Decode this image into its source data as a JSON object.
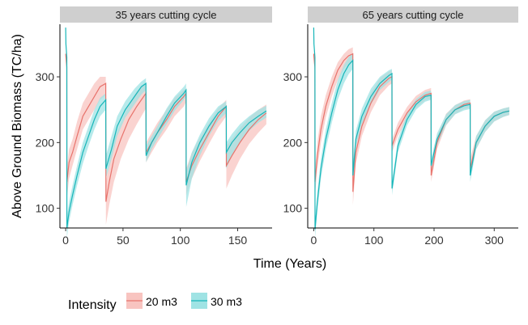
{
  "chart_data": {
    "type": "line",
    "xlabel": "Time (Years)",
    "ylabel": "Above Ground Biomass (TC/ha)",
    "legend": {
      "title": "Intensity",
      "placement": "bottom-left",
      "entries": [
        {
          "name": "20 m3",
          "color": "#E8736C",
          "fill": "#F8C4C0"
        },
        {
          "name": "30 m3",
          "color": "#17B6B9",
          "fill": "#9FE3E4"
        }
      ]
    },
    "grid": false,
    "ylim": [
      70,
      380
    ],
    "yticks": [
      100,
      200,
      300
    ],
    "panels": [
      {
        "title": "35 years cutting cycle",
        "xlim": [
          -5,
          180
        ],
        "xticks": [
          0,
          50,
          100,
          150
        ],
        "series": [
          {
            "name": "20 m3",
            "x": [
              0,
              0.2,
              1,
              1.1,
              3,
              6,
              10,
              15,
              20,
              25,
              30,
              35,
              35.1,
              38,
              42,
              48,
              55,
              62,
              70,
              70.1,
              75,
              80,
              88,
              95,
              103,
              105,
              105.1,
              110,
              117,
              125,
              133,
              140,
              140.1,
              145,
              152,
              160,
              168,
              175
            ],
            "y": [
              335,
              330,
              315,
              140,
              170,
              185,
              210,
              240,
              255,
              270,
              285,
              290,
              110,
              140,
              175,
              205,
              235,
              255,
              275,
              185,
              200,
              215,
              235,
              255,
              270,
              275,
              140,
              165,
              190,
              215,
              240,
              255,
              165,
              180,
              200,
              220,
              235,
              245
            ],
            "lo": [
              325,
              320,
              305,
              115,
              145,
              165,
              190,
              220,
              235,
              250,
              265,
              272,
              75,
              105,
              140,
              175,
              205,
              228,
              252,
              170,
              185,
              200,
              220,
              240,
              255,
              262,
              120,
              145,
              172,
              198,
              223,
              240,
              130,
              150,
              175,
              198,
              215,
              228
            ],
            "hi": [
              340,
              335,
              325,
              160,
              190,
              205,
              232,
              260,
              275,
              290,
              300,
              300,
              140,
              170,
              205,
              230,
              258,
              278,
              290,
              200,
              215,
              230,
              250,
              268,
              280,
              282,
              160,
              185,
              207,
              230,
              252,
              265,
              195,
              205,
              222,
              238,
              250,
              258
            ]
          },
          {
            "name": "30 m3",
            "x": [
              0,
              0.2,
              1,
              1.1,
              3,
              6,
              10,
              15,
              20,
              25,
              30,
              35,
              35.1,
              40,
              45,
              52,
              60,
              66,
              70,
              70.1,
              75,
              80,
              88,
              95,
              103,
              105,
              105.1,
              110,
              117,
              125,
              133,
              140,
              140.1,
              145,
              152,
              160,
              168,
              175
            ],
            "y": [
              375,
              350,
              330,
              70,
              95,
              120,
              150,
              185,
              210,
              235,
              255,
              265,
              160,
              190,
              225,
              250,
              270,
              285,
              290,
              180,
              200,
              215,
              240,
              260,
              275,
              280,
              135,
              170,
              200,
              225,
              245,
              255,
              185,
              200,
              215,
              230,
              240,
              248
            ],
            "lo": [
              370,
              345,
              325,
              55,
              80,
              105,
              135,
              168,
              195,
              220,
              240,
              250,
              145,
              175,
              210,
              238,
              258,
              273,
              280,
              170,
              190,
              205,
              228,
              248,
              265,
              270,
              102,
              145,
              180,
              210,
              233,
              245,
              160,
              180,
              200,
              218,
              230,
              238
            ],
            "hi": [
              380,
              355,
              335,
              85,
              110,
              135,
              165,
              200,
              225,
              250,
              268,
              275,
              180,
              210,
              240,
              263,
              282,
              293,
              298,
              195,
              210,
              225,
              252,
              270,
              285,
              290,
              155,
              185,
              212,
              237,
              255,
              263,
              200,
              213,
              228,
              240,
              250,
              256
            ]
          }
        ]
      },
      {
        "title": "65 years cutting cycle",
        "xlim": [
          -10,
          340
        ],
        "xticks": [
          0,
          100,
          200,
          300
        ],
        "series": [
          {
            "name": "20 m3",
            "x": [
              0,
              0.4,
              2,
              2.1,
              6,
              12,
              20,
              30,
              40,
              50,
              58,
              65,
              65.1,
              70,
              80,
              95,
              110,
              125,
              130,
              130.1,
              140,
              155,
              170,
              185,
              195,
              195.1,
              205,
              220,
              235,
              250,
              260,
              260.1,
              270,
              285,
              300,
              315,
              325
            ],
            "y": [
              335,
              330,
              315,
              140,
              180,
              220,
              255,
              285,
              310,
              325,
              332,
              335,
              125,
              185,
              225,
              260,
              285,
              298,
              300,
              195,
              220,
              245,
              262,
              272,
              275,
              150,
              200,
              235,
              250,
              258,
              260,
              160,
              200,
              225,
              240,
              246,
              248
            ],
            "lo": [
              325,
              320,
              305,
              120,
              160,
              200,
              238,
              270,
              295,
              312,
              320,
              322,
              105,
              168,
              210,
              246,
              272,
              287,
              290,
              185,
              210,
              236,
              253,
              264,
              267,
              140,
              190,
              226,
              243,
              251,
              253,
              150,
              190,
              216,
              232,
              239,
              242
            ],
            "hi": [
              340,
              335,
              325,
              160,
              200,
              240,
              272,
              300,
              322,
              335,
              342,
              345,
              150,
              205,
              240,
              275,
              298,
              308,
              310,
              205,
              230,
              254,
              271,
              280,
              283,
              165,
              210,
              244,
              257,
              264,
              266,
              175,
              210,
              234,
              247,
              252,
              254
            ]
          },
          {
            "name": "30 m3",
            "x": [
              0,
              0.4,
              2,
              2.1,
              6,
              12,
              20,
              30,
              40,
              50,
              58,
              65,
              65.1,
              70,
              80,
              95,
              110,
              125,
              130,
              130.1,
              140,
              155,
              170,
              185,
              195,
              195.1,
              205,
              220,
              235,
              250,
              260,
              260.1,
              270,
              285,
              300,
              315,
              325
            ],
            "y": [
              375,
              350,
              330,
              68,
              110,
              160,
              205,
              245,
              280,
              305,
              318,
              325,
              150,
              205,
              240,
              270,
              290,
              302,
              305,
              130,
              195,
              235,
              258,
              270,
              272,
              165,
              205,
              235,
              250,
              256,
              258,
              150,
              200,
              225,
              240,
              246,
              248
            ],
            "lo": [
              370,
              345,
              325,
              55,
              95,
              145,
              190,
              230,
              265,
              290,
              304,
              312,
              140,
              193,
              228,
              258,
              280,
              292,
              296,
              120,
              185,
              226,
              250,
              262,
              265,
              155,
              196,
              227,
              243,
              249,
              251,
              140,
              190,
              216,
              232,
              239,
              242
            ],
            "hi": [
              380,
              355,
              335,
              80,
              125,
              175,
              220,
              260,
              295,
              318,
              330,
              336,
              165,
              218,
              252,
              282,
              300,
              310,
              312,
              140,
              205,
              244,
              266,
              277,
              279,
              175,
              214,
              243,
              257,
              263,
              265,
              160,
              210,
              234,
              247,
              252,
              254
            ]
          }
        ]
      }
    ]
  }
}
